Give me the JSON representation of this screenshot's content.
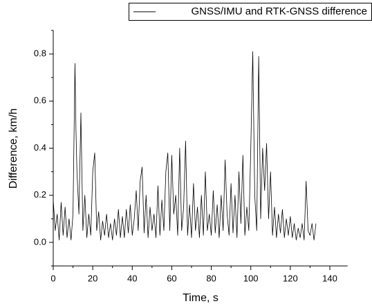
{
  "chart_data": {
    "type": "line",
    "xlabel": "Time, s",
    "ylabel": "Difference, km/h",
    "x": [
      0,
      1,
      2,
      3,
      4,
      5,
      6,
      7,
      8,
      9,
      10,
      11,
      11.5,
      12,
      13,
      14,
      15,
      16,
      17,
      18,
      19,
      20,
      21,
      22,
      23,
      24,
      25,
      26,
      27,
      28,
      29,
      30,
      31,
      32,
      33,
      34,
      35,
      36,
      37,
      38,
      39,
      40,
      41,
      42,
      43,
      44,
      45,
      46,
      47,
      48,
      49,
      50,
      51,
      52,
      53,
      54,
      55,
      56,
      57,
      58,
      59,
      60,
      61,
      62,
      63,
      64,
      65,
      66,
      67,
      68,
      69,
      70,
      71,
      72,
      73,
      74,
      75,
      76,
      77,
      78,
      79,
      80,
      81,
      82,
      83,
      84,
      85,
      86,
      87,
      88,
      89,
      90,
      91,
      92,
      93,
      94,
      95,
      96,
      97,
      98,
      99,
      100,
      101,
      102,
      103,
      104,
      105,
      106,
      107,
      108,
      109,
      110,
      111,
      112,
      113,
      114,
      115,
      116,
      117,
      118,
      119,
      120,
      121,
      122,
      123,
      124,
      125,
      126,
      127,
      128,
      129,
      130,
      131,
      132,
      133
    ],
    "series": [
      {
        "name": "GNSS/IMU and RTK-GNSS difference",
        "color": "#000000",
        "values": [
          0.18,
          0.05,
          0.12,
          0.01,
          0.17,
          0.03,
          0.15,
          0.02,
          0.1,
          0.01,
          0.12,
          0.76,
          0.48,
          0.3,
          0.12,
          0.55,
          0.05,
          0.2,
          0.02,
          0.12,
          0.03,
          0.3,
          0.38,
          0.05,
          0.13,
          0.01,
          0.09,
          0.03,
          0.12,
          0.02,
          0.08,
          0.01,
          0.1,
          0.03,
          0.14,
          0.02,
          0.11,
          0.02,
          0.14,
          0.04,
          0.16,
          0.03,
          0.1,
          0.22,
          0.05,
          0.26,
          0.32,
          0.04,
          0.2,
          0.02,
          0.15,
          0.05,
          0.12,
          0.02,
          0.24,
          0.03,
          0.18,
          0.05,
          0.3,
          0.38,
          0.05,
          0.37,
          0.12,
          0.2,
          0.03,
          0.4,
          0.05,
          0.15,
          0.43,
          0.03,
          0.16,
          0.02,
          0.25,
          0.05,
          0.15,
          0.02,
          0.2,
          0.03,
          0.3,
          0.05,
          0.12,
          0.03,
          0.22,
          0.04,
          0.16,
          0.02,
          0.2,
          0.05,
          0.35,
          0.12,
          0.03,
          0.25,
          0.04,
          0.2,
          0.02,
          0.3,
          0.08,
          0.37,
          0.03,
          0.15,
          0.05,
          0.4,
          0.81,
          0.2,
          0.05,
          0.79,
          0.1,
          0.4,
          0.22,
          0.42,
          0.1,
          0.3,
          0.03,
          0.15,
          0.02,
          0.12,
          0.04,
          0.14,
          0.02,
          0.1,
          0.03,
          0.11,
          0.02,
          0.08,
          0.01,
          0.06,
          0.02,
          0.08,
          0.01,
          0.26,
          0.05,
          0.03,
          0.08,
          0.01,
          0.08
        ]
      }
    ],
    "xlim": [
      0,
      149
    ],
    "ylim": [
      -0.1,
      0.9
    ],
    "xticks": [
      0,
      20,
      40,
      60,
      80,
      100,
      120,
      140
    ],
    "yticks": [
      {
        "value": 0,
        "label": "0.0"
      },
      0.2,
      0.4,
      0.6,
      0.8
    ],
    "xminorticks": [
      10,
      30,
      50,
      70,
      90,
      110,
      130
    ],
    "yminorticks": [
      -0.1,
      0.1,
      0.3,
      0.5,
      0.7,
      0.9
    ],
    "legend": "top-right"
  }
}
